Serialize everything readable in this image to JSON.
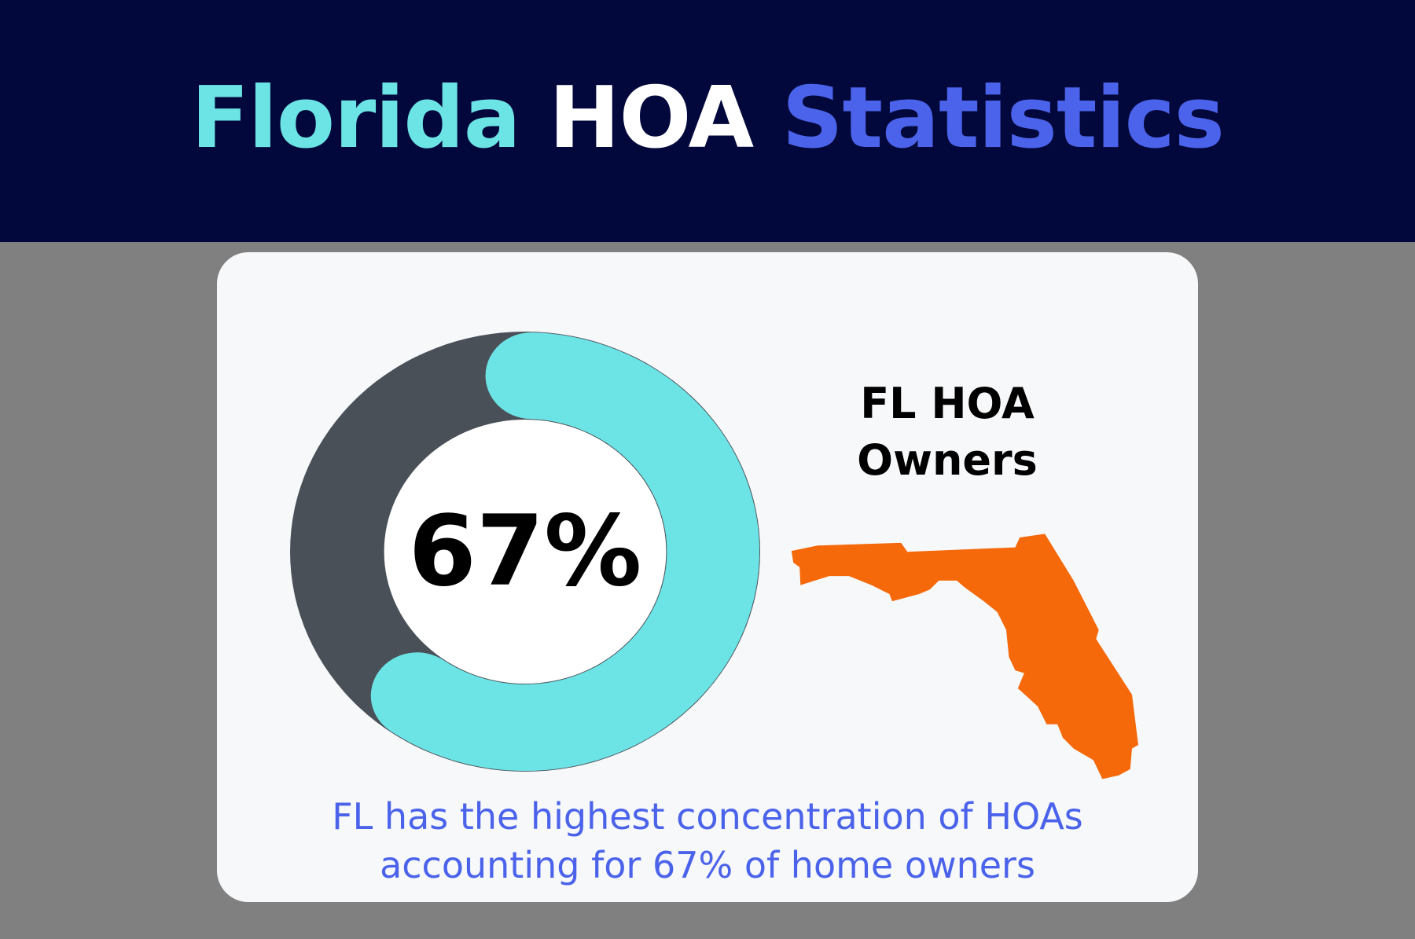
{
  "header": {
    "title_part1": "Florida",
    "title_part2": "HOA",
    "title_part3": "Statistics"
  },
  "stat": {
    "value_label": "67%",
    "percent": 67,
    "label_line1": "FL HOA",
    "label_line2": "Owners"
  },
  "caption": {
    "line1": "FL has the highest concentration of HOAs",
    "line2": "accounting for 67% of home owners"
  },
  "colors": {
    "header_bg": "#03083c",
    "accent_teal": "#6ce4e6",
    "accent_blue": "#4b63ea",
    "ring_dark": "#4a5058",
    "florida_orange": "#f5690a",
    "background": "#808080",
    "card": "#f6f8fa"
  }
}
